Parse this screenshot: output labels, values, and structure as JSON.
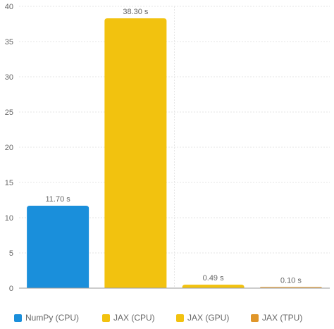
{
  "chart_data": {
    "type": "bar",
    "categories": [
      "NumPy (CPU)",
      "JAX (CPU)",
      "JAX (GPU)",
      "JAX (TPU)"
    ],
    "values": [
      11.7,
      38.3,
      0.49,
      0.1
    ],
    "data_labels": [
      "11.70 s",
      "38.30 s",
      "0.49 s",
      "0.10 s"
    ],
    "colors": [
      "#1a8fdb",
      "#f2c20f",
      "#f2c20f",
      "#e0962a"
    ],
    "ylim": [
      0,
      40
    ],
    "yticks": [
      0,
      5,
      10,
      15,
      20,
      25,
      30,
      35,
      40
    ],
    "grid": true,
    "legend_position": "bottom"
  }
}
